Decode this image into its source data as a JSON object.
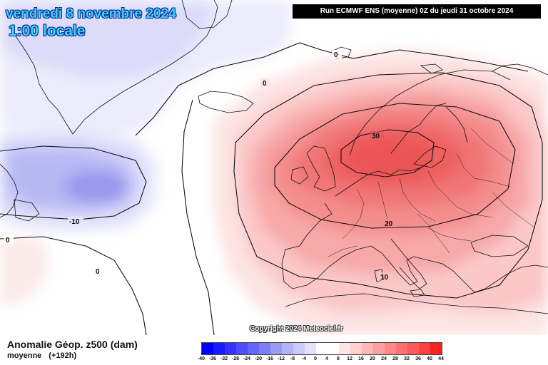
{
  "header": {
    "date_line": "vendredi 8 novembre 2024",
    "time_line": "1:00 locale",
    "run_info": "Run ECMWF ENS (moyenne) 0Z du jeudi 31 octobre 2024"
  },
  "map": {
    "contour_labels": [
      {
        "id": "label-0-north",
        "text": "0"
      },
      {
        "id": "label-0-mid",
        "text": "0"
      },
      {
        "id": "label-0-west",
        "text": "0"
      },
      {
        "id": "label-0-atlantic",
        "text": "0"
      },
      {
        "id": "label-minus10",
        "text": "-10"
      },
      {
        "id": "label-30",
        "text": "30"
      },
      {
        "id": "label-20",
        "text": "20"
      },
      {
        "id": "label-10",
        "text": "10"
      }
    ],
    "copyright": "Copyright 2024 Meteociel.fr"
  },
  "footer": {
    "parameter_title": "Anomalie Géop. z500 (dam)",
    "parameter_type": "moyenne",
    "lead_time": "(+192h)"
  },
  "legend": {
    "labels": [
      "-40",
      "-36",
      "-32",
      "-28",
      "-24",
      "-20",
      "-16",
      "-12",
      "-8",
      "-4",
      "0",
      "4",
      "8",
      "12",
      "16",
      "20",
      "24",
      "28",
      "32",
      "36",
      "40",
      "44"
    ],
    "colors": [
      "#0000ff",
      "#1a1aff",
      "#3333ff",
      "#4d4dff",
      "#6666ff",
      "#7f7ff5",
      "#9a9af2",
      "#b3b3f5",
      "#cacaf8",
      "#e2e2fc",
      "#ffffff",
      "#ffffff",
      "#ffe6e6",
      "#ffd0d0",
      "#ffb8b8",
      "#ffa0a0",
      "#ff8888",
      "#ff7070",
      "#ff5858",
      "#ff4040",
      "#ff2020"
    ]
  }
}
